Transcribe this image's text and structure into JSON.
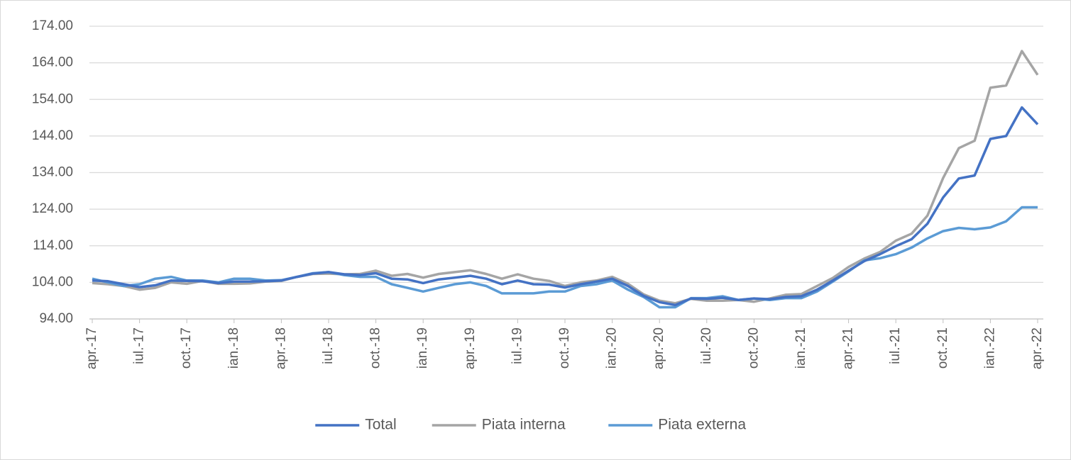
{
  "chart_data": {
    "type": "line",
    "categories": [
      "apr.-17",
      null,
      null,
      "iul.-17",
      null,
      null,
      "oct.-17",
      null,
      null,
      "ian.-18",
      null,
      null,
      "apr.-18",
      null,
      null,
      "iul.-18",
      null,
      null,
      "oct.-18",
      null,
      null,
      "ian.-19",
      null,
      null,
      "apr.-19",
      null,
      null,
      "iul.-19",
      null,
      null,
      "oct.-19",
      null,
      null,
      "ian.-20",
      null,
      null,
      "apr.-20",
      null,
      null,
      "iul.-20",
      null,
      null,
      "oct.-20",
      null,
      null,
      "ian.-21",
      null,
      null,
      "apr.-21",
      null,
      null,
      "iul.-21",
      null,
      null,
      "oct.-21",
      null,
      null,
      "ian.-22",
      null,
      null,
      "apr.-22"
    ],
    "series": [
      {
        "name": "Total",
        "color": "#4472c4",
        "values": [
          104.5,
          104.3,
          103.5,
          102.7,
          103.2,
          104.5,
          104.4,
          104.3,
          103.8,
          104.2,
          104.2,
          104.3,
          104.5,
          105.5,
          106.4,
          106.8,
          106.2,
          106.0,
          106.5,
          105.0,
          104.8,
          103.8,
          104.8,
          105.3,
          105.8,
          105.0,
          103.5,
          104.5,
          103.5,
          103.4,
          102.6,
          103.5,
          104.2,
          105.0,
          103.0,
          100.3,
          98.6,
          97.8,
          99.6,
          99.5,
          99.8,
          99.2,
          99.6,
          99.4,
          100.0,
          100.2,
          102.0,
          104.5,
          107.2,
          109.8,
          111.7,
          113.9,
          115.8,
          120.0,
          127.2,
          132.4,
          133.2,
          143.2,
          144.0,
          151.8,
          147.2
        ]
      },
      {
        "name": "Piata interna",
        "color": "#a5a5a5",
        "values": [
          103.8,
          103.5,
          103.0,
          102.0,
          102.5,
          104.0,
          103.6,
          104.4,
          103.6,
          103.6,
          103.7,
          104.2,
          104.4,
          105.5,
          106.3,
          106.4,
          106.2,
          106.3,
          107.2,
          105.8,
          106.3,
          105.3,
          106.3,
          106.8,
          107.3,
          106.3,
          105.0,
          106.2,
          105.0,
          104.4,
          103.0,
          104.0,
          104.5,
          105.5,
          103.6,
          100.7,
          99.0,
          98.3,
          99.5,
          99.0,
          99.0,
          99.2,
          98.7,
          99.6,
          100.6,
          100.8,
          103.0,
          105.2,
          108.2,
          110.5,
          112.3,
          115.4,
          117.3,
          122.2,
          132.5,
          140.7,
          142.7,
          157.2,
          157.8,
          167.2,
          160.7
        ]
      },
      {
        "name": "Piata externa",
        "color": "#5b9bd5",
        "values": [
          105.0,
          104.0,
          103.0,
          103.5,
          105.0,
          105.5,
          104.5,
          104.5,
          104.0,
          105.0,
          105.0,
          104.5,
          104.6,
          105.5,
          106.5,
          106.8,
          106.0,
          105.5,
          105.5,
          103.5,
          102.5,
          101.5,
          102.5,
          103.5,
          104.0,
          103.0,
          101.0,
          101.0,
          101.0,
          101.5,
          101.5,
          103.0,
          103.5,
          104.5,
          102.0,
          100.0,
          97.2,
          97.2,
          99.7,
          99.7,
          100.2,
          99.2,
          99.6,
          99.2,
          99.7,
          99.7,
          101.5,
          104.2,
          107.0,
          110.0,
          110.6,
          111.7,
          113.5,
          116.0,
          118.0,
          118.9,
          118.5,
          119.0,
          120.7,
          124.5,
          124.5
        ]
      }
    ],
    "ylim": [
      94,
      174
    ],
    "yticks": [
      {
        "value": 94,
        "label": "94.00"
      },
      {
        "value": 104,
        "label": "104.00"
      },
      {
        "value": 114,
        "label": "114.00"
      },
      {
        "value": 124,
        "label": "124.00"
      },
      {
        "value": 134,
        "label": "134.00"
      },
      {
        "value": 144,
        "label": "144.00"
      },
      {
        "value": 154,
        "label": "154.00"
      },
      {
        "value": 164,
        "label": "164.00"
      },
      {
        "value": 174,
        "label": "174.00"
      }
    ],
    "grid": true,
    "legend": "bottom"
  }
}
